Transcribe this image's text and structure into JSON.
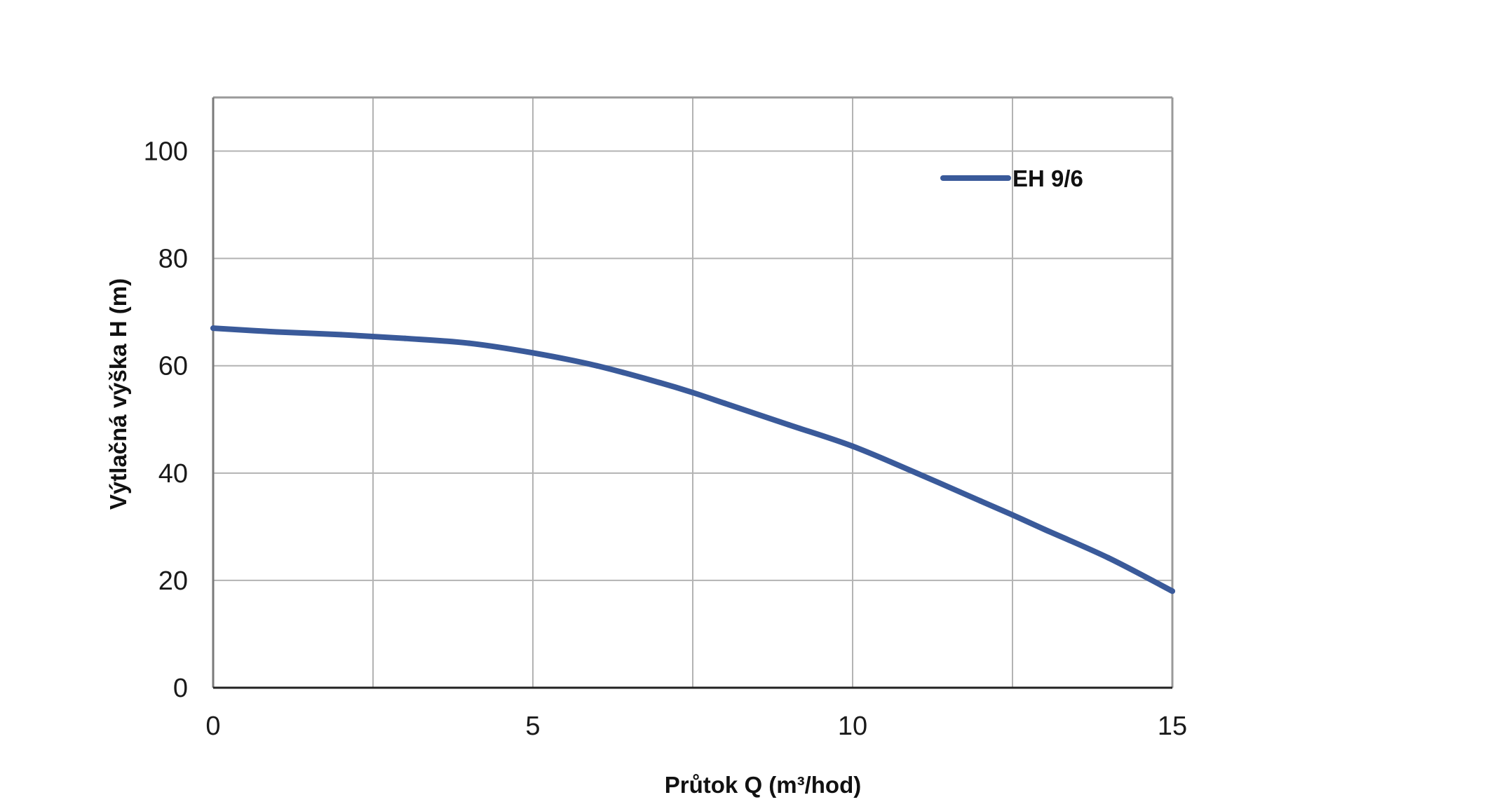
{
  "chart_data": {
    "type": "line",
    "title": "",
    "xlabel": "Průtok Q (m³/hod)",
    "ylabel": "Výtlačná výška H (m)",
    "xlim": [
      0,
      15
    ],
    "ylim": [
      0,
      110
    ],
    "x_ticks": [
      "0",
      "5",
      "10",
      "15"
    ],
    "y_ticks": [
      "0",
      "20",
      "40",
      "60",
      "80",
      "100"
    ],
    "grid": true,
    "legend_position": "top-right",
    "series": [
      {
        "name": "EH 9/6",
        "color": "#3a5a9a",
        "x": [
          0,
          1,
          2,
          3,
          4,
          5,
          6,
          7,
          7.5,
          8,
          9,
          10,
          11,
          12,
          12.5,
          13,
          14,
          15
        ],
        "y": [
          67,
          66.3,
          65.8,
          65.1,
          64.2,
          62.4,
          60,
          56.8,
          55,
          53,
          49,
          45,
          40,
          34.8,
          32.2,
          29.5,
          24.2,
          18
        ]
      }
    ]
  }
}
